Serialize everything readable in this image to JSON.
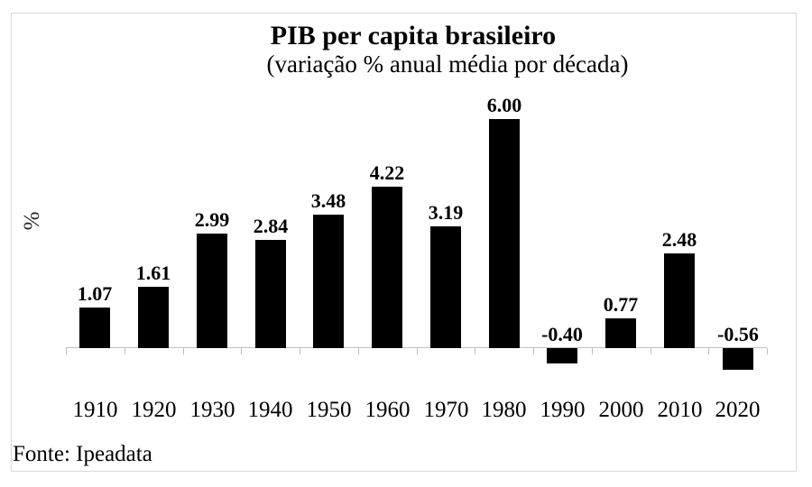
{
  "chart_data": {
    "type": "bar",
    "title": "PIB per capita brasileiro",
    "subtitle": "(variação % anual média por década)",
    "ylabel": "%",
    "xlabel": "",
    "categories": [
      "1910",
      "1920",
      "1930",
      "1940",
      "1950",
      "1960",
      "1970",
      "1980",
      "1990",
      "2000",
      "2010",
      "2020"
    ],
    "values": [
      1.07,
      1.61,
      2.99,
      2.84,
      3.48,
      4.22,
      3.19,
      6.0,
      -0.4,
      0.77,
      2.48,
      -0.56
    ],
    "value_labels": [
      "1.07",
      "1.61",
      "2.99",
      "2.84",
      "3.48",
      "4.22",
      "3.19",
      "6.00",
      "-0.40",
      "0.77",
      "2.48",
      "-0.56"
    ],
    "source": "Fonte: Ipeadata",
    "ylim": [
      -1,
      6.5
    ],
    "grid": false,
    "legend": false,
    "bar_color": "#000000",
    "axis_color": "#bfbfbf",
    "frame_border_color": "#d9d9d9"
  }
}
